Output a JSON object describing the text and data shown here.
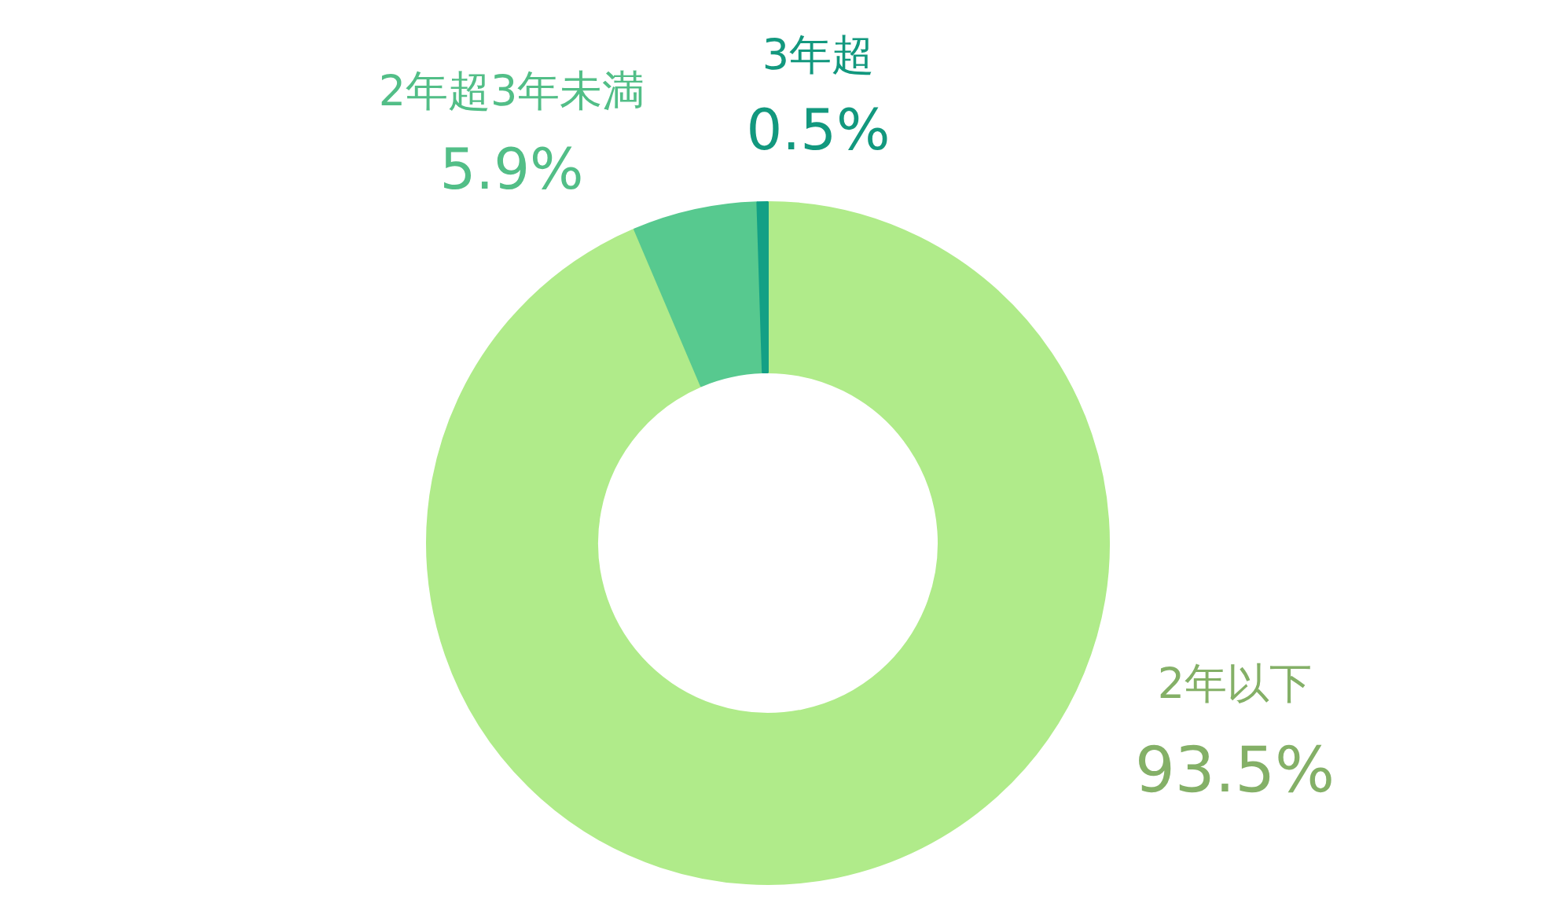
{
  "chart_data": {
    "type": "donut",
    "categories": [
      "2年以下",
      "2年超3年未満",
      "3年超"
    ],
    "values": [
      93.5,
      5.9,
      0.5
    ],
    "colors": [
      "#b0eb8a",
      "#57c98f",
      "#13a085"
    ],
    "value_labels": [
      "93.5%",
      "5.9%",
      "0.5%"
    ],
    "legend": false
  }
}
